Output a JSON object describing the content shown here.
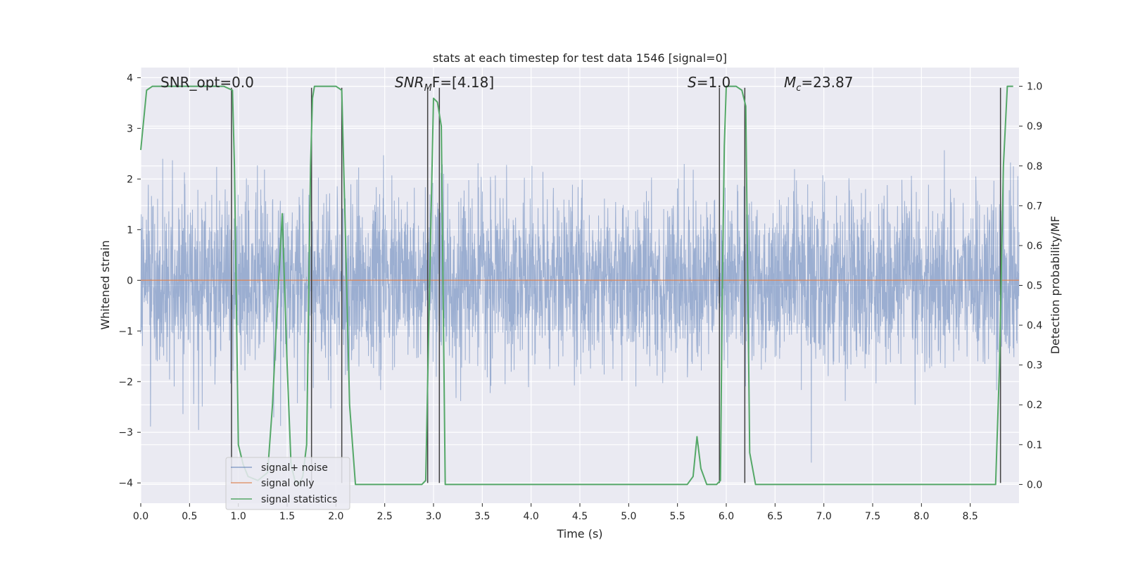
{
  "chart_data": {
    "type": "line",
    "title": "stats at each timestep for test data 1546 [signal=0]",
    "xlabel": "Time (s)",
    "ylabel": "Whitened strain",
    "y2label": "Detection probability/MF",
    "xlim": [
      0,
      9
    ],
    "ylim": [
      -4.4,
      4.2
    ],
    "y2lim": [
      -0.047,
      1.047
    ],
    "x_ticks": [
      0.0,
      0.5,
      1.0,
      1.5,
      2.0,
      2.5,
      3.0,
      3.5,
      4.0,
      4.5,
      5.0,
      5.5,
      6.0,
      6.5,
      7.0,
      7.5,
      8.0,
      8.5
    ],
    "x_tick_labels": [
      "0.0",
      "0.5",
      "1.0",
      "1.5",
      "2.0",
      "2.5",
      "3.0",
      "3.5",
      "4.0",
      "4.5",
      "5.0",
      "5.5",
      "6.0",
      "6.5",
      "7.0",
      "7.5",
      "8.0",
      "8.5"
    ],
    "y_ticks": [
      -4,
      -3,
      -2,
      -1,
      0,
      1,
      2,
      3,
      4
    ],
    "y_tick_labels": [
      "−4",
      "−3",
      "−2",
      "−1",
      "0",
      "1",
      "2",
      "3",
      "4"
    ],
    "y2_ticks": [
      0.0,
      0.1,
      0.2,
      0.3,
      0.4,
      0.5,
      0.6,
      0.7,
      0.8,
      0.9,
      1.0
    ],
    "y2_tick_labels": [
      "0.0",
      "0.1",
      "0.2",
      "0.3",
      "0.4",
      "0.5",
      "0.6",
      "0.7",
      "0.8",
      "0.9",
      "1.0"
    ],
    "grid": true,
    "legend_position": "lower-left",
    "annotations": {
      "snr_opt": "SNR_opt=0.0",
      "snr_mf_main": "SNR",
      "snr_mf_sub": "M",
      "snr_mf_rest": "F=[4.18]",
      "s_main": "S",
      "s_rest": "=1.0",
      "mc_main": "M",
      "mc_sub": "c",
      "mc_rest": "=23.87"
    },
    "series": [
      {
        "name": "signal+ noise",
        "color": "#4c72b0",
        "kind": "noise",
        "amplitude_typical": 1.8,
        "amplitude_peak": 3.6
      },
      {
        "name": "signal only",
        "color": "#dd8452",
        "x": [
          0,
          9
        ],
        "y": [
          0,
          0
        ]
      },
      {
        "name": "signal statistics",
        "color": "#55a868",
        "axis": "right",
        "x": [
          0.0,
          0.06,
          0.12,
          0.2,
          0.3,
          0.5,
          0.7,
          0.85,
          0.94,
          0.96,
          1.0,
          1.05,
          1.1,
          1.2,
          1.3,
          1.35,
          1.4,
          1.45,
          1.5,
          1.54,
          1.58,
          1.62,
          1.66,
          1.7,
          1.74,
          1.76,
          1.78,
          1.8,
          1.84,
          1.9,
          2.0,
          2.06,
          2.1,
          2.14,
          2.2,
          2.4,
          2.6,
          2.8,
          2.88,
          2.92,
          2.96,
          3.0,
          3.04,
          3.08,
          3.12,
          3.2,
          3.6,
          4.0,
          4.4,
          4.8,
          5.2,
          5.6,
          5.66,
          5.7,
          5.74,
          5.8,
          5.9,
          5.94,
          5.96,
          5.98,
          6.0,
          6.1,
          6.16,
          6.2,
          6.24,
          6.3,
          6.5,
          7.0,
          7.5,
          8.0,
          8.5,
          8.76,
          8.8,
          8.84,
          8.88,
          8.94
        ],
        "y": [
          0.84,
          0.99,
          1.0,
          1.0,
          1.0,
          1.0,
          1.0,
          1.0,
          0.99,
          0.8,
          0.1,
          0.05,
          0.02,
          0.01,
          0.03,
          0.2,
          0.45,
          0.68,
          0.3,
          0.05,
          0.01,
          0.0,
          0.02,
          0.1,
          0.8,
          0.97,
          1.0,
          1.0,
          1.0,
          1.0,
          1.0,
          0.99,
          0.6,
          0.2,
          0.0,
          0.0,
          0.0,
          0.0,
          0.0,
          0.01,
          0.5,
          0.97,
          0.96,
          0.9,
          0.0,
          0.0,
          0.0,
          0.0,
          0.0,
          0.0,
          0.0,
          0.0,
          0.02,
          0.12,
          0.04,
          0.0,
          0.0,
          0.01,
          0.5,
          0.85,
          1.0,
          1.0,
          0.99,
          0.95,
          0.08,
          0.0,
          0.0,
          0.0,
          0.0,
          0.0,
          0.0,
          0.0,
          0.3,
          0.8,
          1.0,
          1.0
        ]
      }
    ],
    "vertical_markers": {
      "color": "#404040",
      "x": [
        0.93,
        1.75,
        2.06,
        2.94,
        3.06,
        5.93,
        6.19,
        8.81
      ],
      "y_top": 3.8,
      "y_bottom": -4.0
    }
  }
}
